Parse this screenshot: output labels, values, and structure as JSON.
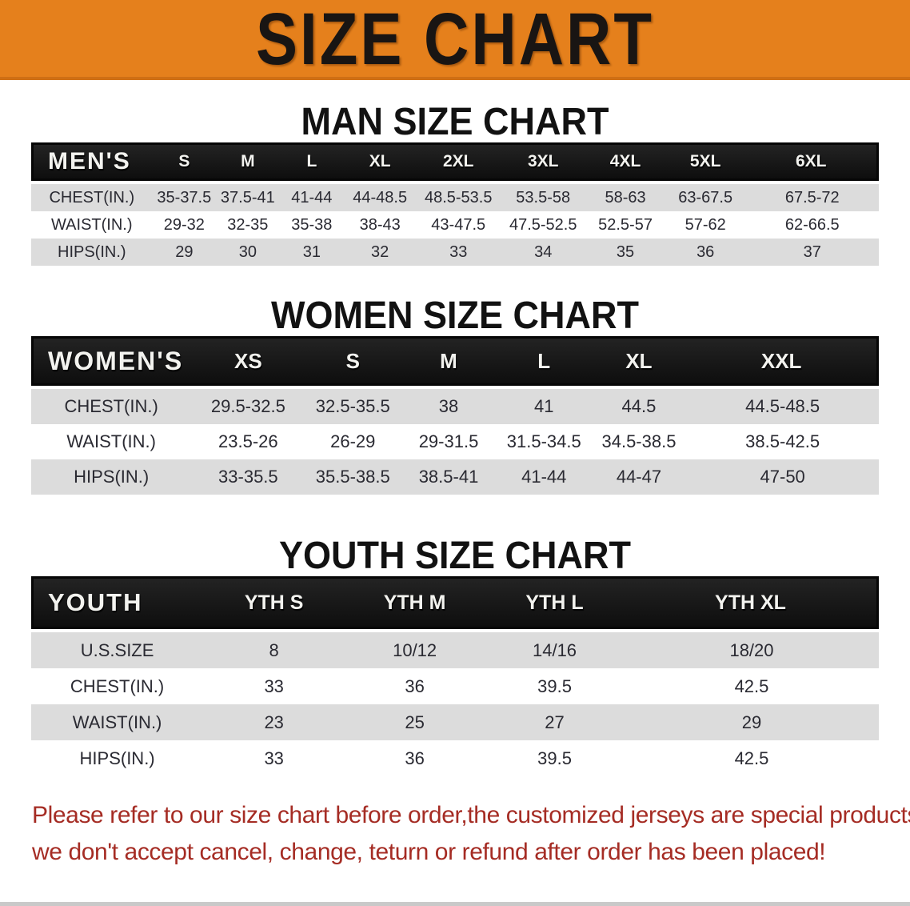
{
  "banner": {
    "title": "SIZE CHART",
    "bg_color": "#e5801c"
  },
  "sections": [
    {
      "heading": "MAN SIZE CHART",
      "table": {
        "label": "MEN'S",
        "sizes": [
          "S",
          "M",
          "L",
          "XL",
          "2XL",
          "3XL",
          "4XL",
          "5XL",
          "6XL"
        ],
        "rows": [
          {
            "label": "CHEST(IN.)",
            "values": [
              "35-37.5",
              "37.5-41",
              "41-44",
              "44-48.5",
              "48.5-53.5",
              "53.5-58",
              "58-63",
              "63-67.5",
              "67.5-72"
            ]
          },
          {
            "label": "WAIST(IN.)",
            "values": [
              "29-32",
              "32-35",
              "35-38",
              "38-43",
              "43-47.5",
              "47.5-52.5",
              "52.5-57",
              "57-62",
              "62-66.5"
            ]
          },
          {
            "label": "HIPS(IN.)",
            "values": [
              "29",
              "30",
              "31",
              "32",
              "33",
              "34",
              "35",
              "36",
              "37"
            ]
          }
        ]
      }
    },
    {
      "heading": "WOMEN SIZE CHART",
      "table": {
        "label": "WOMEN'S",
        "sizes": [
          "XS",
          "S",
          "M",
          "L",
          "XL",
          "XXL"
        ],
        "rows": [
          {
            "label": "CHEST(IN.)",
            "values": [
              "29.5-32.5",
              "32.5-35.5",
              "38",
              "41",
              "44.5",
              "44.5-48.5"
            ]
          },
          {
            "label": "WAIST(IN.)",
            "values": [
              "23.5-26",
              "26-29",
              "29-31.5",
              "31.5-34.5",
              "34.5-38.5",
              "38.5-42.5"
            ]
          },
          {
            "label": "HIPS(IN.)",
            "values": [
              "33-35.5",
              "35.5-38.5",
              "38.5-41",
              "41-44",
              "44-47",
              "47-50"
            ]
          }
        ]
      }
    },
    {
      "heading": "YOUTH SIZE CHART",
      "table": {
        "label": "YOUTH",
        "sizes": [
          "YTH S",
          "YTH M",
          "YTH L",
          "YTH XL"
        ],
        "rows": [
          {
            "label": "U.S.SIZE",
            "values": [
              "8",
              "10/12",
              "14/16",
              "18/20"
            ]
          },
          {
            "label": "CHEST(IN.)",
            "values": [
              "33",
              "36",
              "39.5",
              "42.5"
            ]
          },
          {
            "label": "WAIST(IN.)",
            "values": [
              "23",
              "25",
              "27",
              "29"
            ]
          },
          {
            "label": "HIPS(IN.)",
            "values": [
              "33",
              "36",
              "39.5",
              "42.5"
            ]
          }
        ]
      }
    }
  ],
  "footnote": {
    "line1": "Please refer to our size chart before order,the customized jerseys are special products,",
    "line2": "we don't accept cancel, change, teturn or refund after order has been placed!",
    "color": "#a52c24"
  }
}
